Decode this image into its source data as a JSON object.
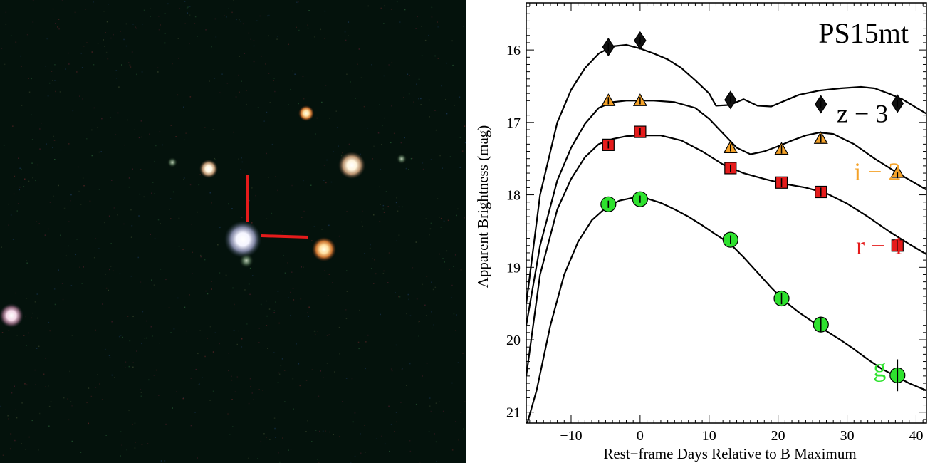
{
  "image_panel": {
    "background": "#04120c",
    "marker_color": "#e51b1b"
  },
  "chart_data": {
    "type": "scatter",
    "title": "PS15mt",
    "xlabel": "Rest−frame Days Relative to B Maximum",
    "ylabel": "Apparent Brightness (mag)",
    "xlim": [
      -16.5,
      41.5
    ],
    "ylim": [
      21.15,
      15.35
    ],
    "y_inverted": true,
    "xticks": [
      -10,
      0,
      10,
      20,
      30,
      40
    ],
    "xtick_labels": [
      "−10",
      "0",
      "10",
      "20",
      "30",
      "40"
    ],
    "yticks": [
      16,
      17,
      18,
      19,
      20,
      21
    ],
    "ytick_labels": [
      "16",
      "17",
      "18",
      "19",
      "20",
      "21"
    ],
    "series": [
      {
        "name": "z − 3",
        "color": "#000000",
        "fill": "#111111",
        "marker": "diamond",
        "points": [
          {
            "x": -4.6,
            "y": 15.96,
            "err": 0.05
          },
          {
            "x": 0.0,
            "y": 15.87,
            "err": 0.05
          },
          {
            "x": 13.1,
            "y": 16.69,
            "err": 0.05
          },
          {
            "x": 26.2,
            "y": 16.75,
            "err": 0.05
          },
          {
            "x": 37.3,
            "y": 16.74,
            "err": 0.05
          }
        ],
        "model": [
          [
            -16.5,
            19.5
          ],
          [
            -14.5,
            18.0
          ],
          [
            -12.0,
            17.0
          ],
          [
            -10.0,
            16.55
          ],
          [
            -8.0,
            16.25
          ],
          [
            -6.0,
            16.05
          ],
          [
            -4.0,
            15.95
          ],
          [
            -2.0,
            15.93
          ],
          [
            0.0,
            15.98
          ],
          [
            2.0,
            16.05
          ],
          [
            4.0,
            16.13
          ],
          [
            6.0,
            16.25
          ],
          [
            8.0,
            16.42
          ],
          [
            10.0,
            16.6
          ],
          [
            11.0,
            16.77
          ],
          [
            13.0,
            16.76
          ],
          [
            15.0,
            16.68
          ],
          [
            17.0,
            16.77
          ],
          [
            19.0,
            16.78
          ],
          [
            21.0,
            16.7
          ],
          [
            23.0,
            16.62
          ],
          [
            26.0,
            16.56
          ],
          [
            29.0,
            16.53
          ],
          [
            32.0,
            16.51
          ],
          [
            34.0,
            16.53
          ],
          [
            36.0,
            16.6
          ],
          [
            38.0,
            16.68
          ],
          [
            41.5,
            16.88
          ]
        ],
        "label": {
          "text": "z − 3",
          "color": "#000000",
          "x": 28.5,
          "y": 16.88
        }
      },
      {
        "name": "i − 2",
        "color": "#f4a229",
        "fill": "#f4a229",
        "marker": "triangle",
        "points": [
          {
            "x": -4.6,
            "y": 16.7,
            "err": 0.05
          },
          {
            "x": 0.0,
            "y": 16.7,
            "err": 0.05
          },
          {
            "x": 13.1,
            "y": 17.35,
            "err": 0.05
          },
          {
            "x": 20.5,
            "y": 17.37,
            "err": 0.06
          },
          {
            "x": 26.2,
            "y": 17.22,
            "err": 0.06
          },
          {
            "x": 37.3,
            "y": 17.69,
            "err": 0.08
          }
        ],
        "model": [
          [
            -16.5,
            19.8
          ],
          [
            -14.5,
            18.7
          ],
          [
            -12.0,
            17.8
          ],
          [
            -10.0,
            17.35
          ],
          [
            -8.0,
            17.02
          ],
          [
            -6.0,
            16.8
          ],
          [
            -4.0,
            16.72
          ],
          [
            -2.0,
            16.7
          ],
          [
            0.0,
            16.7
          ],
          [
            2.0,
            16.7
          ],
          [
            5.0,
            16.72
          ],
          [
            8.0,
            16.8
          ],
          [
            10.0,
            16.95
          ],
          [
            12.0,
            17.15
          ],
          [
            14.0,
            17.35
          ],
          [
            16.0,
            17.44
          ],
          [
            18.0,
            17.4
          ],
          [
            20.0,
            17.33
          ],
          [
            22.0,
            17.25
          ],
          [
            24.0,
            17.18
          ],
          [
            26.0,
            17.14
          ],
          [
            28.0,
            17.16
          ],
          [
            31.0,
            17.3
          ],
          [
            34.0,
            17.5
          ],
          [
            37.0,
            17.68
          ],
          [
            41.5,
            17.93
          ]
        ],
        "label": {
          "text": "i − 2",
          "color": "#f4a229",
          "x": 31.0,
          "y": 17.68
        }
      },
      {
        "name": "r − 1",
        "color": "#e51b1b",
        "fill": "#e51b1b",
        "marker": "square",
        "points": [
          {
            "x": -4.6,
            "y": 17.31,
            "err": 0.05
          },
          {
            "x": 0.0,
            "y": 17.13,
            "err": 0.05
          },
          {
            "x": 13.1,
            "y": 17.63,
            "err": 0.05
          },
          {
            "x": 20.5,
            "y": 17.83,
            "err": 0.06
          },
          {
            "x": 26.2,
            "y": 17.96,
            "err": 0.06
          },
          {
            "x": 37.3,
            "y": 18.7,
            "err": 0.08
          }
        ],
        "model": [
          [
            -16.5,
            20.5
          ],
          [
            -14.5,
            19.1
          ],
          [
            -12.0,
            18.2
          ],
          [
            -10.0,
            17.78
          ],
          [
            -8.0,
            17.48
          ],
          [
            -6.0,
            17.3
          ],
          [
            -4.0,
            17.23
          ],
          [
            -2.0,
            17.19
          ],
          [
            0.0,
            17.18
          ],
          [
            3.0,
            17.18
          ],
          [
            6.0,
            17.25
          ],
          [
            9.0,
            17.4
          ],
          [
            12.0,
            17.58
          ],
          [
            15.0,
            17.7
          ],
          [
            18.0,
            17.78
          ],
          [
            21.0,
            17.85
          ],
          [
            24.0,
            17.9
          ],
          [
            27.0,
            17.98
          ],
          [
            30.0,
            18.12
          ],
          [
            33.0,
            18.3
          ],
          [
            36.0,
            18.5
          ],
          [
            39.0,
            18.68
          ],
          [
            41.5,
            18.82
          ]
        ],
        "label": {
          "text": "r − 1",
          "color": "#e51b1b",
          "x": 31.3,
          "y": 18.7
        }
      },
      {
        "name": "g",
        "color": "#2ee22e",
        "fill": "#2ee22e",
        "marker": "circle",
        "points": [
          {
            "x": -4.6,
            "y": 18.13,
            "err": 0.05
          },
          {
            "x": 0.0,
            "y": 18.06,
            "err": 0.05
          },
          {
            "x": 13.1,
            "y": 18.62,
            "err": 0.06
          },
          {
            "x": 20.5,
            "y": 19.43,
            "err": 0.08
          },
          {
            "x": 26.2,
            "y": 19.79,
            "err": 0.1
          },
          {
            "x": 37.3,
            "y": 20.49,
            "err": 0.22
          }
        ],
        "model": [
          [
            -16.5,
            21.2
          ],
          [
            -15.0,
            20.7
          ],
          [
            -13.0,
            19.8
          ],
          [
            -11.0,
            19.1
          ],
          [
            -9.0,
            18.65
          ],
          [
            -7.0,
            18.35
          ],
          [
            -5.0,
            18.18
          ],
          [
            -3.0,
            18.08
          ],
          [
            -1.0,
            18.04
          ],
          [
            1.0,
            18.05
          ],
          [
            3.0,
            18.11
          ],
          [
            5.0,
            18.2
          ],
          [
            7.0,
            18.3
          ],
          [
            9.0,
            18.42
          ],
          [
            11.0,
            18.55
          ],
          [
            13.0,
            18.67
          ],
          [
            15.0,
            18.86
          ],
          [
            17.0,
            19.07
          ],
          [
            19.0,
            19.28
          ],
          [
            21.0,
            19.47
          ],
          [
            23.0,
            19.62
          ],
          [
            25.0,
            19.75
          ],
          [
            27.0,
            19.88
          ],
          [
            29.0,
            20.0
          ],
          [
            31.0,
            20.13
          ],
          [
            33.0,
            20.27
          ],
          [
            35.0,
            20.4
          ],
          [
            37.0,
            20.5
          ],
          [
            39.0,
            20.6
          ],
          [
            41.5,
            20.7
          ]
        ],
        "label": {
          "text": "g",
          "color": "#2ee22e",
          "x": 33.8,
          "y": 20.39
        }
      }
    ]
  }
}
